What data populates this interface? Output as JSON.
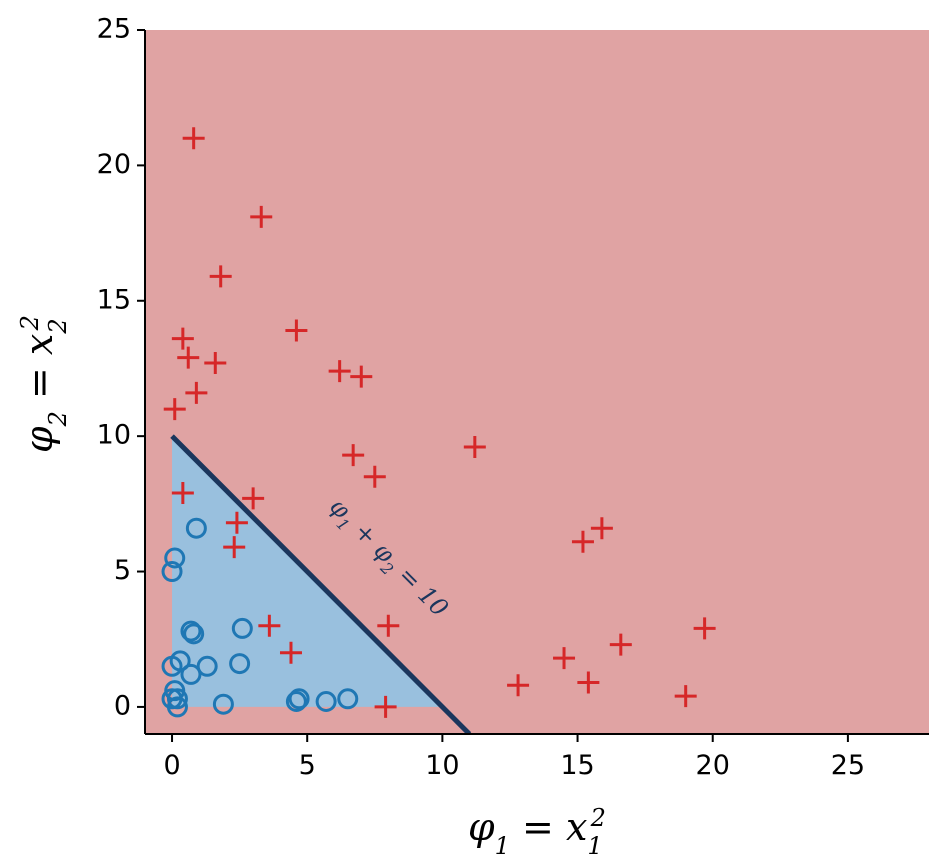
{
  "chart_data": {
    "type": "scatter",
    "title": "",
    "xlabel": "φ1 = x1²",
    "ylabel": "φ2 = x2²",
    "xlim": [
      -1,
      28
    ],
    "ylim": [
      -1,
      25
    ],
    "xticks": [
      0,
      5,
      10,
      15,
      20,
      25
    ],
    "yticks": [
      0,
      5,
      10,
      15,
      20,
      25
    ],
    "xtick_labels": [
      "0",
      "5",
      "10",
      "15",
      "20",
      "25"
    ],
    "ytick_labels": [
      "0",
      "5",
      "10",
      "15",
      "20",
      "25"
    ],
    "grid": false,
    "regions": [
      {
        "name": "positive",
        "color": "#e0a3a3"
      },
      {
        "name": "negative",
        "color": "#99c0de",
        "polygon": [
          [
            0,
            0
          ],
          [
            10,
            0
          ],
          [
            0,
            10
          ]
        ]
      }
    ],
    "decision_boundary": {
      "equation": "φ1 + φ2 = 10",
      "from": [
        0,
        10
      ],
      "to": [
        11,
        -1
      ],
      "color": "#1b365d"
    },
    "annotation": {
      "text": "φ1 + φ2 = 10",
      "x": 8,
      "y": 5.5
    },
    "series": [
      {
        "marker": "plus",
        "color": "#d62728",
        "points": [
          [
            0.8,
            21.0
          ],
          [
            3.3,
            18.1
          ],
          [
            1.8,
            15.9
          ],
          [
            0.4,
            13.6
          ],
          [
            4.6,
            13.9
          ],
          [
            0.6,
            12.9
          ],
          [
            1.6,
            12.7
          ],
          [
            6.2,
            12.4
          ],
          [
            7.0,
            12.2
          ],
          [
            0.9,
            11.6
          ],
          [
            0.1,
            11.0
          ],
          [
            11.2,
            9.6
          ],
          [
            6.7,
            9.3
          ],
          [
            7.5,
            8.5
          ],
          [
            0.4,
            7.9
          ],
          [
            3.0,
            7.7
          ],
          [
            2.4,
            6.8
          ],
          [
            15.9,
            6.6
          ],
          [
            2.3,
            5.9
          ],
          [
            15.2,
            6.1
          ],
          [
            3.6,
            3.0
          ],
          [
            8.0,
            3.0
          ],
          [
            19.7,
            2.9
          ],
          [
            16.6,
            2.3
          ],
          [
            4.4,
            2.0
          ],
          [
            14.5,
            1.8
          ],
          [
            15.4,
            0.9
          ],
          [
            12.8,
            0.8
          ],
          [
            19.0,
            0.4
          ],
          [
            7.9,
            0.0
          ]
        ]
      },
      {
        "marker": "circle",
        "color": "#1f77b4",
        "points": [
          [
            0.9,
            6.6
          ],
          [
            0.1,
            5.5
          ],
          [
            0.0,
            5.0
          ],
          [
            2.6,
            2.9
          ],
          [
            0.7,
            2.8
          ],
          [
            0.8,
            2.7
          ],
          [
            0.3,
            1.7
          ],
          [
            1.3,
            1.5
          ],
          [
            0.0,
            1.5
          ],
          [
            2.5,
            1.6
          ],
          [
            0.7,
            1.2
          ],
          [
            0.1,
            0.6
          ],
          [
            0.0,
            0.3
          ],
          [
            0.2,
            0.3
          ],
          [
            4.7,
            0.3
          ],
          [
            4.6,
            0.2
          ],
          [
            5.7,
            0.2
          ],
          [
            6.5,
            0.3
          ],
          [
            1.9,
            0.1
          ],
          [
            0.2,
            0.0
          ]
        ]
      }
    ]
  }
}
